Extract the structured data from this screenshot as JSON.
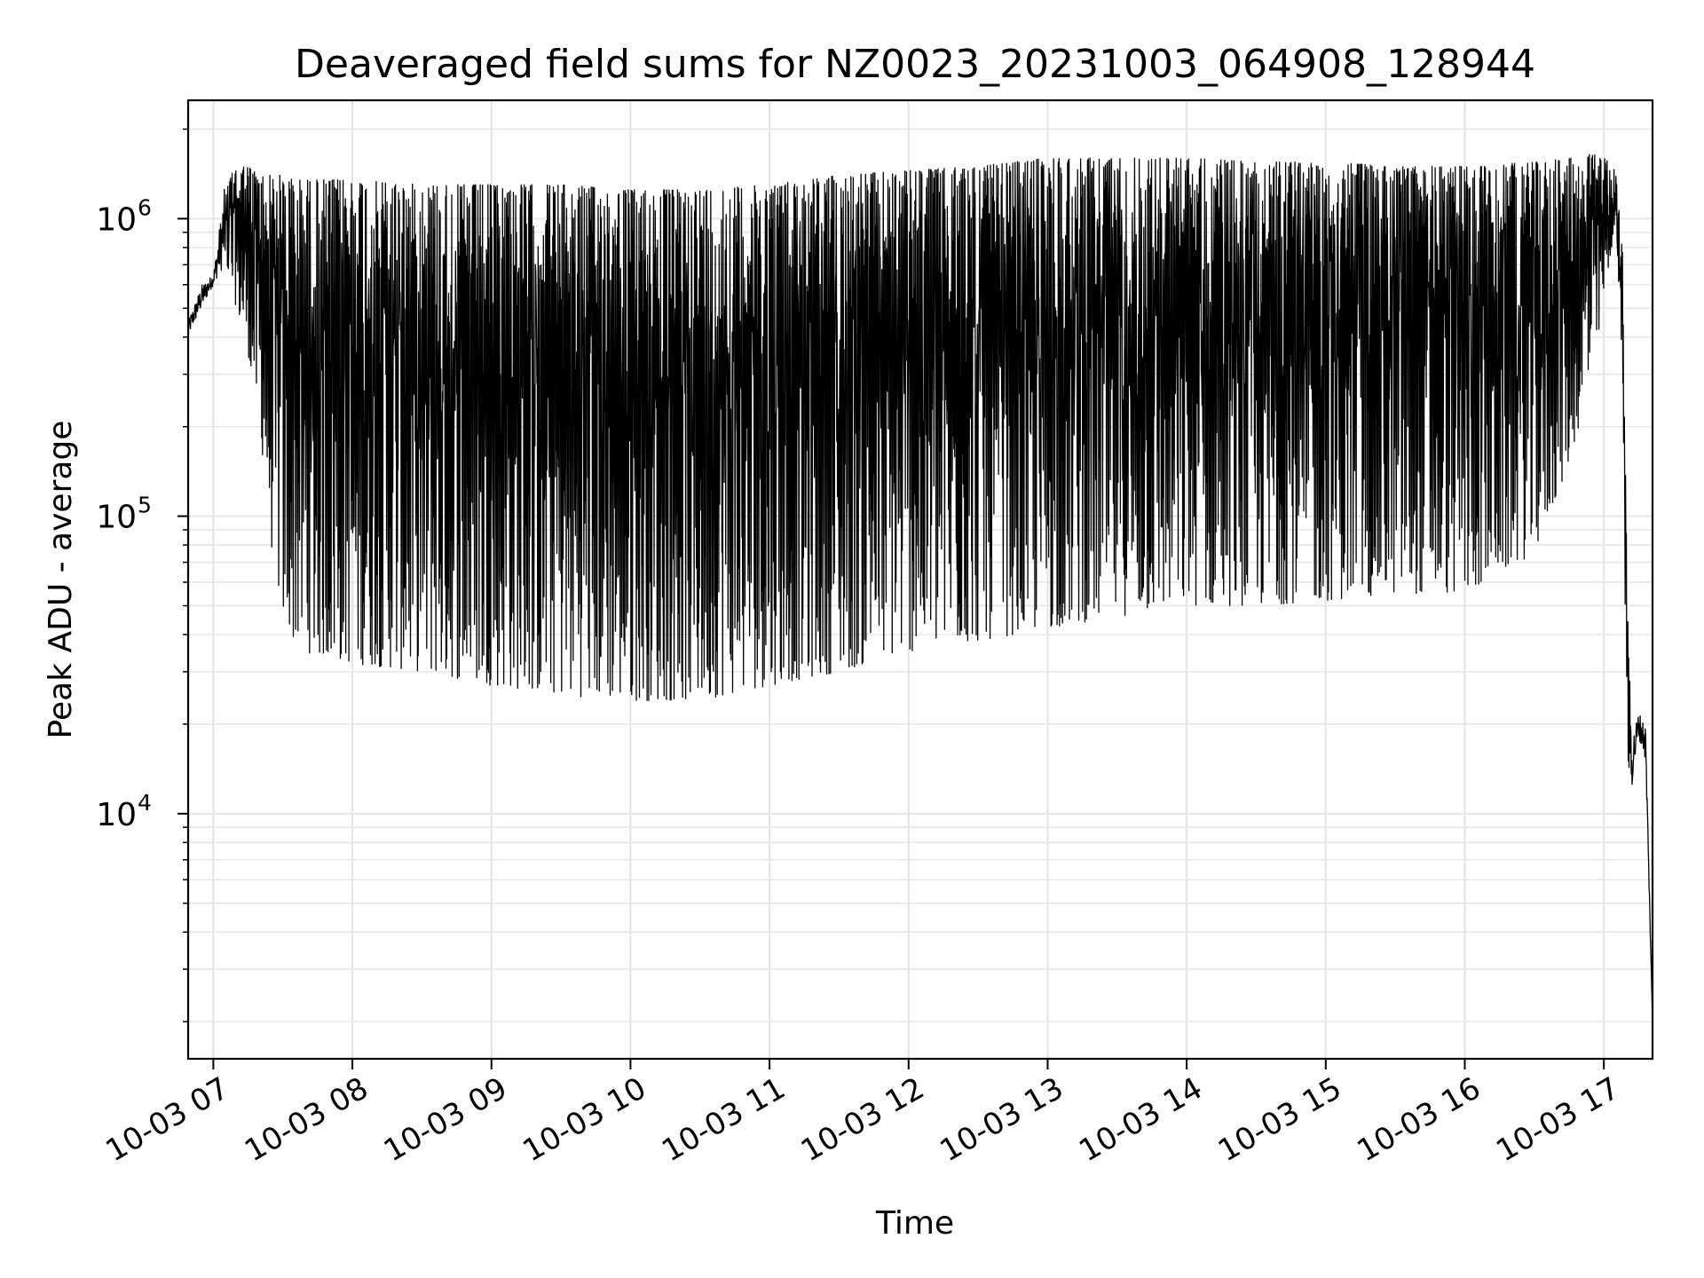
{
  "chart_data": {
    "type": "line",
    "title": "Deaveraged field sums for NZ0023_20231003_064908_128944",
    "xlabel": "Time",
    "ylabel": "Peak ADU - average",
    "y_scale": "log",
    "ylim": [
      1500,
      2500000
    ],
    "xlim": [
      "2023-10-03T06:49:08",
      "2023-10-03T17:21:00"
    ],
    "x_ticks": [
      {
        "value": "2023-10-03T07:00",
        "label": "10-03 07"
      },
      {
        "value": "2023-10-03T08:00",
        "label": "10-03 08"
      },
      {
        "value": "2023-10-03T09:00",
        "label": "10-03 09"
      },
      {
        "value": "2023-10-03T10:00",
        "label": "10-03 10"
      },
      {
        "value": "2023-10-03T11:00",
        "label": "10-03 11"
      },
      {
        "value": "2023-10-03T12:00",
        "label": "10-03 12"
      },
      {
        "value": "2023-10-03T13:00",
        "label": "10-03 13"
      },
      {
        "value": "2023-10-03T14:00",
        "label": "10-03 14"
      },
      {
        "value": "2023-10-03T15:00",
        "label": "10-03 15"
      },
      {
        "value": "2023-10-03T16:00",
        "label": "10-03 16"
      },
      {
        "value": "2023-10-03T17:00",
        "label": "10-03 17"
      }
    ],
    "y_ticks": [
      {
        "value": 10000,
        "base": "10",
        "exp": "4"
      },
      {
        "value": 100000,
        "base": "10",
        "exp": "5"
      },
      {
        "value": 1000000,
        "base": "10",
        "exp": "6"
      }
    ],
    "grid": "on (major and minor)",
    "legend": "none",
    "line_color": "#000000",
    "envelope": {
      "x": [
        "2023-10-03T06:49",
        "2023-10-03T06:55",
        "2023-10-03T07:00",
        "2023-10-03T07:05",
        "2023-10-03T07:10",
        "2023-10-03T07:15",
        "2023-10-03T07:20",
        "2023-10-03T07:25",
        "2023-10-03T07:30",
        "2023-10-03T07:35",
        "2023-10-03T07:40",
        "2023-10-03T07:50",
        "2023-10-03T08:00",
        "2023-10-03T08:30",
        "2023-10-03T09:00",
        "2023-10-03T09:30",
        "2023-10-03T10:00",
        "2023-10-03T10:30",
        "2023-10-03T11:00",
        "2023-10-03T11:30",
        "2023-10-03T12:00",
        "2023-10-03T12:30",
        "2023-10-03T13:00",
        "2023-10-03T13:30",
        "2023-10-03T14:00",
        "2023-10-03T14:30",
        "2023-10-03T15:00",
        "2023-10-03T15:30",
        "2023-10-03T16:00",
        "2023-10-03T16:30",
        "2023-10-03T16:45",
        "2023-10-03T16:55",
        "2023-10-03T17:00",
        "2023-10-03T17:05",
        "2023-10-03T17:08",
        "2023-10-03T17:10",
        "2023-10-03T17:12",
        "2023-10-03T17:15",
        "2023-10-03T17:18",
        "2023-10-03T17:21"
      ],
      "upper": [
        450000,
        600000,
        650000,
        1300000,
        1500000,
        1500000,
        1400000,
        1400000,
        1400000,
        1350000,
        1350000,
        1350000,
        1350000,
        1300000,
        1300000,
        1300000,
        1250000,
        1250000,
        1300000,
        1400000,
        1450000,
        1500000,
        1600000,
        1600000,
        1600000,
        1550000,
        1550000,
        1500000,
        1500000,
        1550000,
        1600000,
        1650000,
        1600000,
        1500000,
        800000,
        60000,
        18000,
        22000,
        20000,
        2000
      ],
      "lower": [
        400000,
        500000,
        600000,
        700000,
        500000,
        350000,
        200000,
        80000,
        45000,
        38000,
        35000,
        33000,
        32000,
        30000,
        27000,
        25000,
        24000,
        24000,
        27000,
        30000,
        35000,
        38000,
        42000,
        46000,
        50000,
        50000,
        52000,
        55000,
        55000,
        75000,
        150000,
        300000,
        500000,
        1000000,
        300000,
        15000,
        12000,
        18000,
        15000,
        2000
      ]
    }
  }
}
